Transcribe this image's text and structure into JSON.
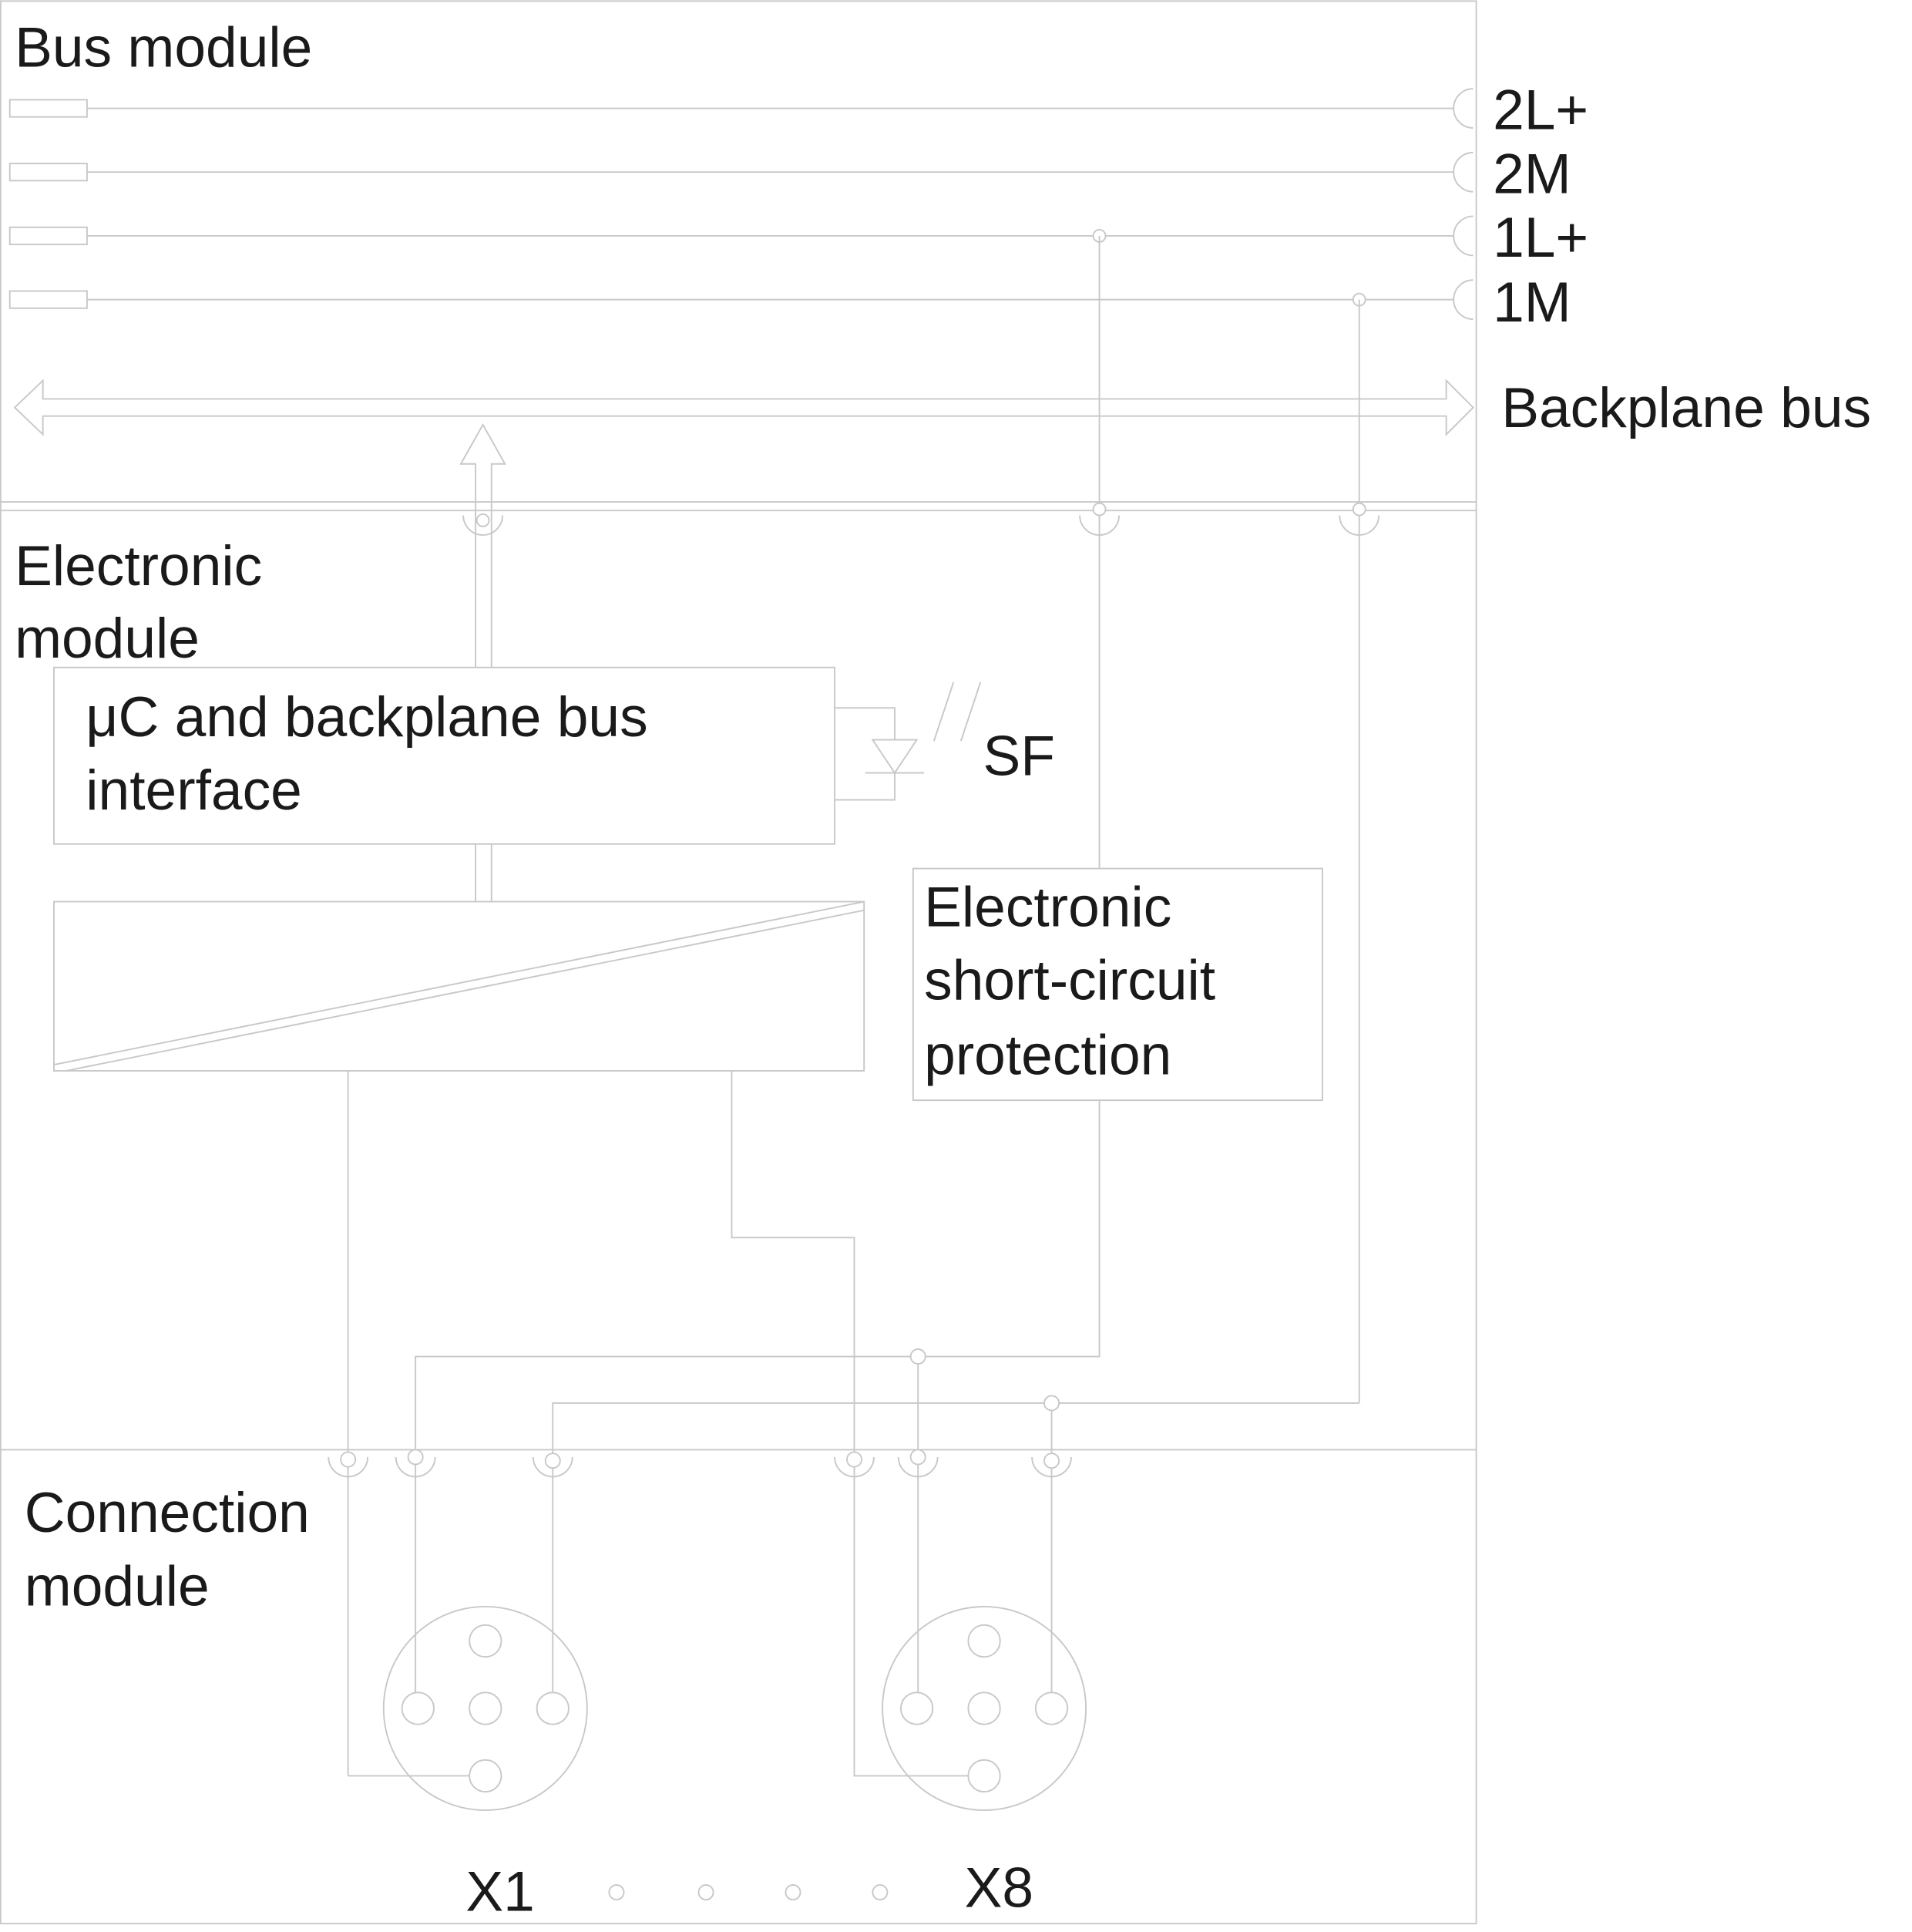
{
  "sections": {
    "bus_module": "Bus module",
    "electronic_module_line1": "Electronic",
    "electronic_module_line2": "module",
    "connection_module_line1": "Connection",
    "connection_module_line2": "module"
  },
  "rails": [
    "2L+",
    "2M",
    "1L+",
    "1M"
  ],
  "backplane_bus": "Backplane bus",
  "uc_box": {
    "line1": "μC and backplane bus",
    "line2": "interface"
  },
  "led_label": "SF",
  "protection_box": {
    "line1": "Electronic",
    "line2": "short-circuit",
    "line3": "protection"
  },
  "connectors": [
    "X1",
    "X8"
  ],
  "line_color": "#c8c8c8"
}
